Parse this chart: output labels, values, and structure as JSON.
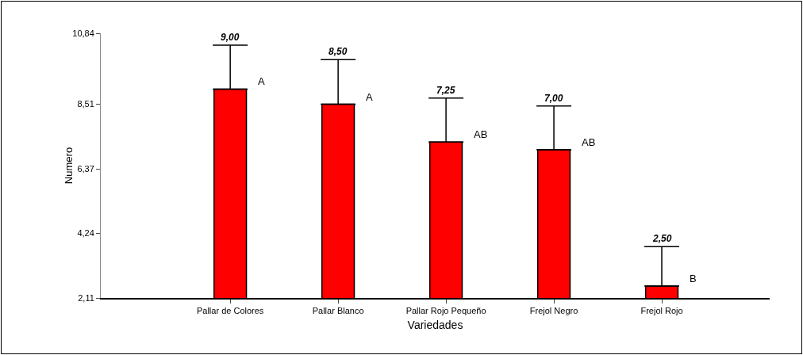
{
  "chart_data": {
    "type": "bar",
    "xlabel": "Variedades",
    "ylabel": "Numero",
    "categories": [
      "Pallar de Colores",
      "Pallar Blanco",
      "Pallar Rojo Pequeño",
      "Frejol Negro",
      "Frejol Rojo"
    ],
    "values": [
      9.0,
      8.5,
      7.25,
      7.0,
      2.5
    ],
    "color": "#ff0000",
    "errors": [
      [
        9.0,
        10.45
      ],
      [
        8.5,
        9.97
      ],
      [
        7.25,
        8.7
      ],
      [
        7.0,
        8.44
      ],
      [
        2.5,
        3.8
      ]
    ],
    "annotations": [
      {
        "text": "9,00",
        "x": "Pallar de Colores",
        "y": 10.45
      },
      {
        "text": "8,50",
        "x": "Pallar Blanco",
        "y": 9.97
      },
      {
        "text": "7,25",
        "x": "Pallar Rojo Pequeño",
        "y": 8.7
      },
      {
        "text": "7,00",
        "x": "Frejol Negro",
        "y": 8.44
      },
      {
        "text": "2,50",
        "x": "Frejol Rojo",
        "y": 3.8
      },
      {
        "text": "A",
        "x": "Pallar de Colores",
        "y": 9.0
      },
      {
        "text": "A",
        "x": "Pallar Blanco",
        "y": 8.5
      },
      {
        "text": "AB",
        "x": "Pallar Rojo Pequeño",
        "y": 7.25
      },
      {
        "text": "AB",
        "x": "Frejol Negro",
        "y": 7.0
      },
      {
        "text": "B",
        "x": "Frejol Rojo",
        "y": 2.5
      }
    ],
    "ylim": [
      2.11,
      10.84
    ],
    "yticks": [
      {
        "value": 2.11,
        "label": "2,11"
      },
      {
        "value": 4.24,
        "label": "4,24"
      },
      {
        "value": 6.37,
        "label": "6,37"
      },
      {
        "value": 8.51,
        "label": "8,51"
      },
      {
        "value": 10.84,
        "label": "10,84"
      }
    ],
    "grid": false
  }
}
